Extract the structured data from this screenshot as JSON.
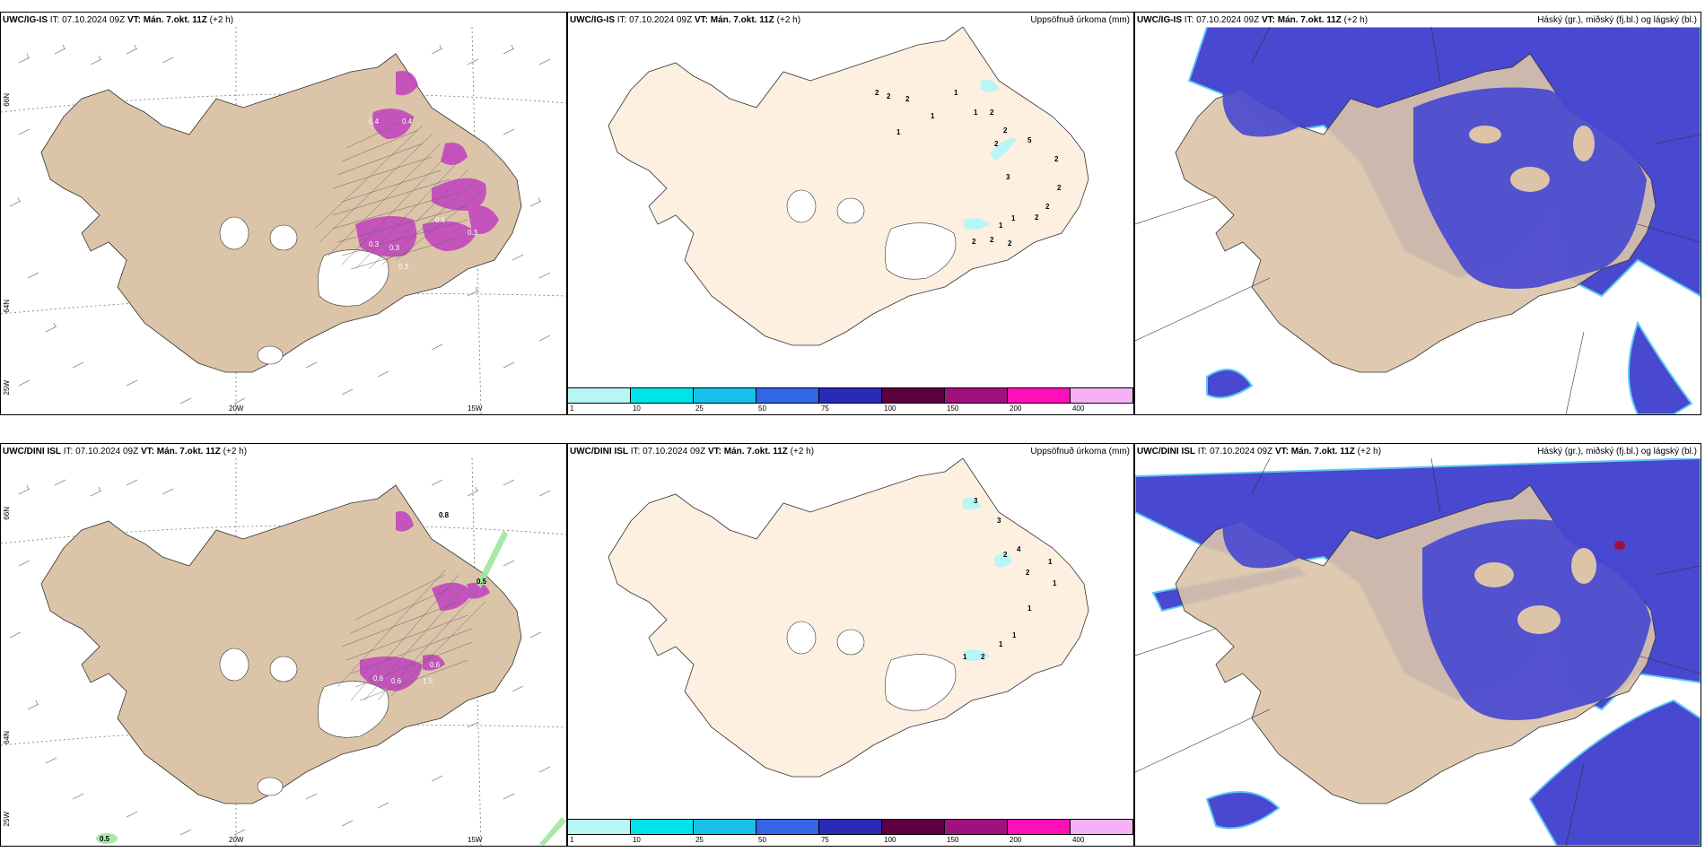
{
  "panels": {
    "top_left": {
      "model": "UWC/IG-IS",
      "it": "IT: 07.10.2024 09Z",
      "vt": "VT: Mán. 7.okt. 11Z",
      "lead": "(+2 h)"
    },
    "top_mid": {
      "model": "UWC/IG-IS",
      "it": "IT: 07.10.2024 09Z",
      "vt": "VT: Mán. 7.okt. 11Z",
      "lead": "(+2 h)",
      "right": "Uppsöfnuð úrkoma (mm)"
    },
    "top_right": {
      "model": "UWC/IG-IS",
      "it": "IT: 07.10.2024 09Z",
      "vt": "VT: Mán. 7.okt. 11Z",
      "lead": "(+2 h)",
      "right": "Háský (gr.), miðský (fj.bl.) og lágský (bl.)"
    },
    "bot_left": {
      "model": "UWC/DINI ISL",
      "it": "IT: 07.10.2024 09Z",
      "vt": "VT: Mán. 7.okt. 11Z",
      "lead": "(+2 h)"
    },
    "bot_mid": {
      "model": "UWC/DINI ISL",
      "it": "IT: 07.10.2024 09Z",
      "vt": "VT: Mán. 7.okt. 11Z",
      "lead": "(+2 h)",
      "right": "Uppsöfnuð úrkoma (mm)"
    },
    "bot_right": {
      "model": "UWC/DINI ISL",
      "it": "IT: 07.10.2024 09Z",
      "vt": "VT: Mán. 7.okt. 11Z",
      "lead": "(+2 h)",
      "right": "Háský (gr.), miðský (fj.bl.) og lágský (bl.)"
    }
  },
  "axis_labels": {
    "lat_66": "66N",
    "lat_64": "64N",
    "lon_25": "25W",
    "lon_20": "20W",
    "lon_15": "15W"
  },
  "colorbar": {
    "ticks": [
      "1",
      "10",
      "25",
      "50",
      "75",
      "100",
      "150",
      "200",
      "400"
    ],
    "colors": [
      "#b8f6f6",
      "#00e4e8",
      "#17c0ea",
      "#3366e6",
      "#2a2ab8",
      "#5c0040",
      "#a0107e",
      "#ff10b6",
      "#f6b0f6"
    ]
  },
  "precip_labels_top": [
    "2",
    "2",
    "2",
    "1",
    "1",
    "1",
    "2",
    "1",
    "2",
    "2",
    "5",
    "2",
    "3",
    "2",
    "2",
    "2",
    "1",
    "1",
    "2",
    "2",
    "2"
  ],
  "precip_labels_bot": [
    "3",
    "3",
    "4",
    "2",
    "1",
    "2",
    "1",
    "1",
    "1",
    "1",
    "1",
    "2"
  ],
  "snow_labels_top": [
    "0.4",
    "0.4",
    "0.3",
    "0.3",
    "0.3",
    "0.6",
    "0.3"
  ],
  "snow_labels_bot": [
    "0.8",
    "0.5",
    "0.6",
    "0.6",
    "0.6",
    "1.5",
    "0.5"
  ],
  "colors": {
    "land": "#dcc4a8",
    "land_plain": "#fdf0e0",
    "cloud_blue": "#4848d0",
    "cloud_cyan": "#5ec8f0",
    "snow_purple": "#c040c0"
  }
}
